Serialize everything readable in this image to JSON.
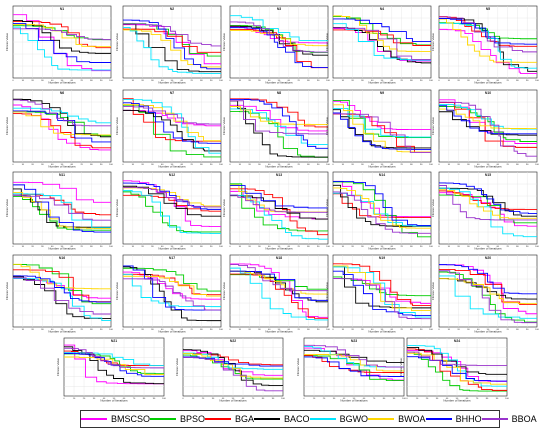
{
  "chart_data": {
    "type": "line",
    "subplot_titles": [
      "N1",
      "N2",
      "N3",
      "N4",
      "N5",
      "N6",
      "N7",
      "N8",
      "N9",
      "N10",
      "N11",
      "N12",
      "N13",
      "N14",
      "N15",
      "N16",
      "N17",
      "N18",
      "N19",
      "N20",
      "N21",
      "N22",
      "N23",
      "N24"
    ],
    "xlabel": "Number of Iterations",
    "ylabel": "Fitness Value",
    "xlim": [
      0,
      100
    ],
    "x_ticks": [
      0,
      10,
      20,
      30,
      40,
      50,
      60,
      70,
      80,
      90,
      100
    ],
    "grid": true,
    "legend_position": "bottom",
    "series": [
      {
        "name": "BMSCSO",
        "color": "#ff00ff"
      },
      {
        "name": "BPSO",
        "color": "#00cc00"
      },
      {
        "name": "BGA",
        "color": "#ff0000"
      },
      {
        "name": "BACO",
        "color": "#000000"
      },
      {
        "name": "BGWO",
        "color": "#00e5ff"
      },
      {
        "name": "BWOA",
        "color": "#ffd700"
      },
      {
        "name": "BHHO",
        "color": "#0000ff"
      },
      {
        "name": "BBOA",
        "color": "#9933cc"
      }
    ]
  }
}
